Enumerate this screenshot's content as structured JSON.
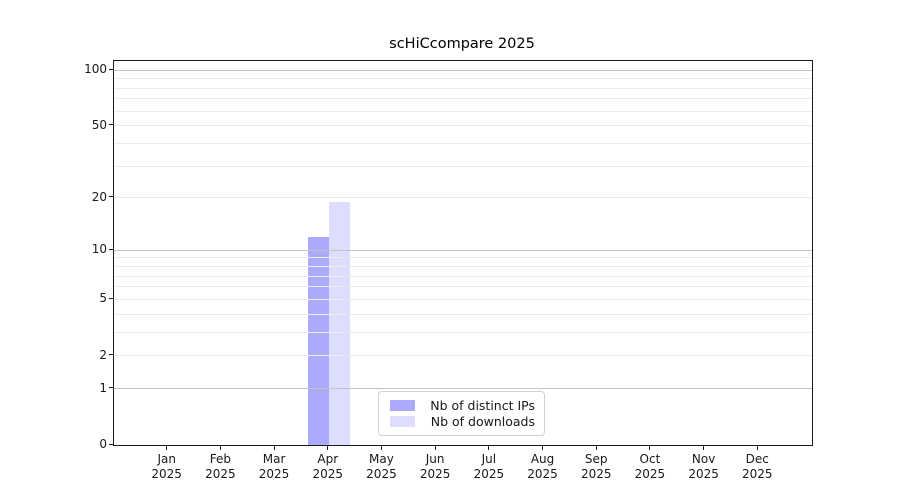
{
  "chart_data": {
    "type": "bar",
    "title": "scHiCcompare 2025",
    "categories": [
      "Jan",
      "Feb",
      "Mar",
      "Apr",
      "May",
      "Jun",
      "Jul",
      "Aug",
      "Sep",
      "Oct",
      "Nov",
      "Dec"
    ],
    "x_year_label": "2025",
    "series": [
      {
        "name": "Nb of distinct IPs",
        "color": "#aaaaff",
        "values": [
          0,
          0,
          0,
          12,
          0,
          0,
          0,
          0,
          0,
          0,
          0,
          0
        ]
      },
      {
        "name": "Nb of downloads",
        "color": "#ddddff",
        "values": [
          0,
          0,
          0,
          19,
          0,
          0,
          0,
          0,
          0,
          0,
          0,
          0
        ]
      }
    ],
    "xlabel": "",
    "ylabel": "",
    "yscale": "log1p",
    "ylim": [
      0,
      112
    ],
    "yticks": [
      0,
      1,
      2,
      5,
      10,
      20,
      50,
      100
    ],
    "grid": {
      "minor_values": [
        2,
        3,
        4,
        5,
        6,
        7,
        8,
        9,
        20,
        30,
        40,
        50,
        60,
        70,
        80,
        90
      ],
      "major_values": [
        1,
        10,
        100
      ],
      "minor_color": "#ececec",
      "major_color": "#c3c3c3"
    },
    "legend": {
      "position": "lower center"
    }
  }
}
